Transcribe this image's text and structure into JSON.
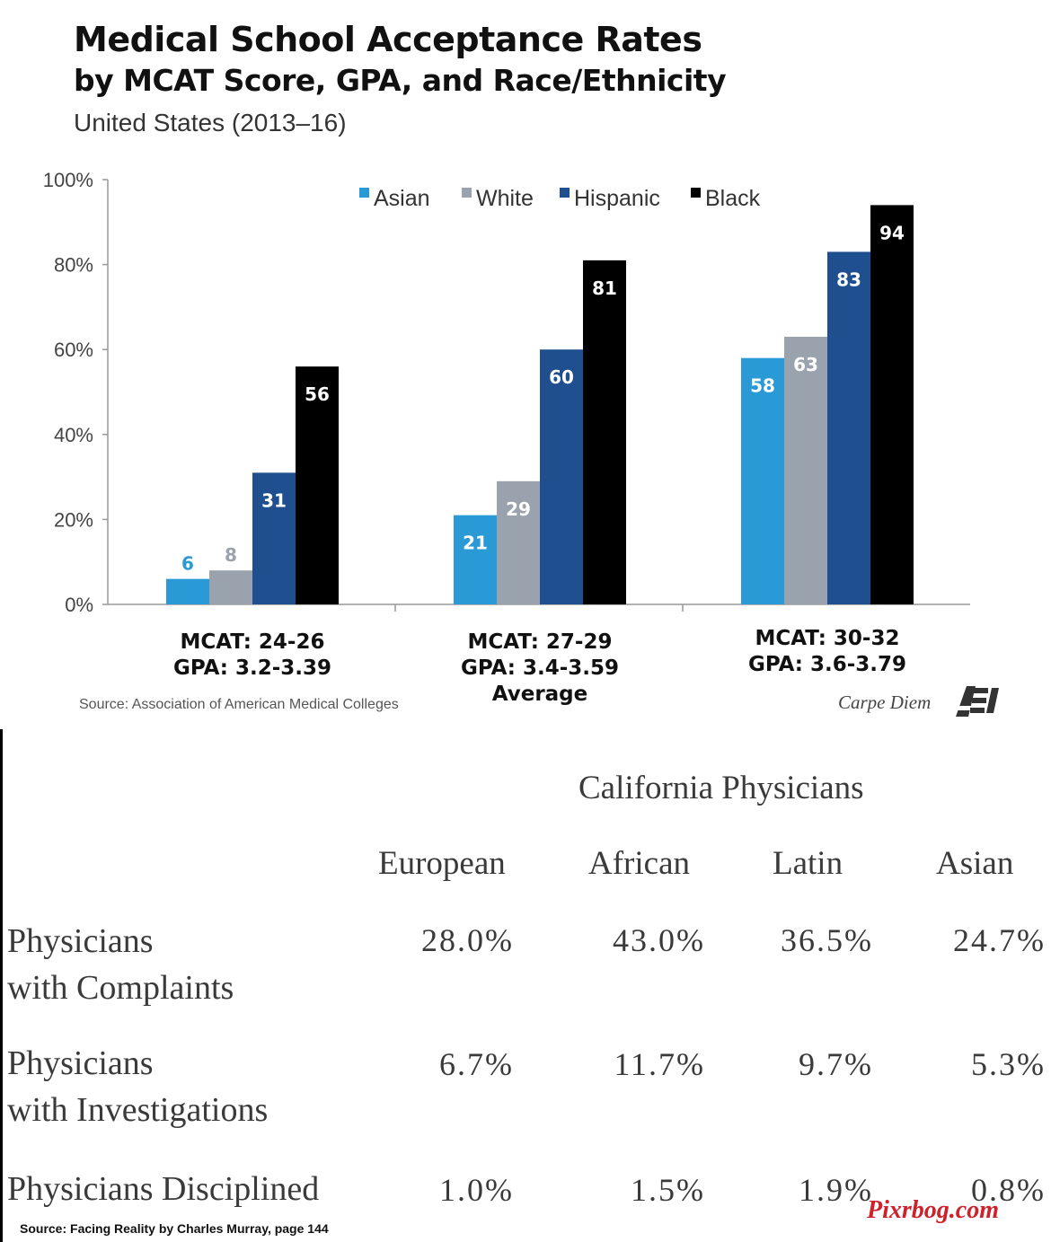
{
  "header": {
    "title_line1": "Medical School Acceptance Rates",
    "title_line2": "by MCAT Score, GPA, and Race/Ethnicity",
    "subtitle": "United States (2013–16)"
  },
  "chart_data": {
    "type": "bar",
    "categories": [
      [
        "MCAT: 24-26",
        "GPA: 3.2-3.39"
      ],
      [
        "MCAT: 27-29",
        "GPA: 3.4-3.59",
        "Average"
      ],
      [
        "MCAT: 30-32",
        "GPA: 3.6-3.79"
      ]
    ],
    "series": [
      {
        "name": "Asian",
        "color": "#2a9ad6",
        "values": [
          6,
          21,
          58
        ]
      },
      {
        "name": "White",
        "color": "#9aa3ad",
        "values": [
          8,
          29,
          63
        ]
      },
      {
        "name": "Hispanic",
        "color": "#1f4f8f",
        "values": [
          31,
          60,
          83
        ]
      },
      {
        "name": "Black",
        "color": "#000000",
        "values": [
          56,
          81,
          94
        ]
      }
    ],
    "y_ticks": [
      "0%",
      "20%",
      "40%",
      "60%",
      "80%",
      "100%"
    ],
    "ylim": [
      0,
      100
    ],
    "grid": false,
    "legend_position": "top-center"
  },
  "chart_footer": {
    "source": "Source: Association of American Medical Colleges",
    "brand": "Carpe Diem",
    "logo_text": "AEI"
  },
  "table": {
    "title": "California Physicians",
    "columns": [
      "European",
      "African",
      "Latin",
      "Asian"
    ],
    "rows": [
      {
        "label_line1": "Physicians",
        "label_line2": "with Complaints",
        "values": [
          "28.0%",
          "43.0%",
          "36.5%",
          "24.7%"
        ]
      },
      {
        "label_line1": "Physicians",
        "label_line2": "with Investigations",
        "values": [
          "6.7%",
          "11.7%",
          "9.7%",
          "5.3%"
        ]
      },
      {
        "label_line1": "Physicians Disciplined",
        "label_line2": "",
        "values": [
          "1.0%",
          "1.5%",
          "1.9%",
          "0.8%"
        ]
      }
    ],
    "source": "Source: Facing Reality by Charles Murray, page 144",
    "watermark": "Pixrbog.com"
  }
}
